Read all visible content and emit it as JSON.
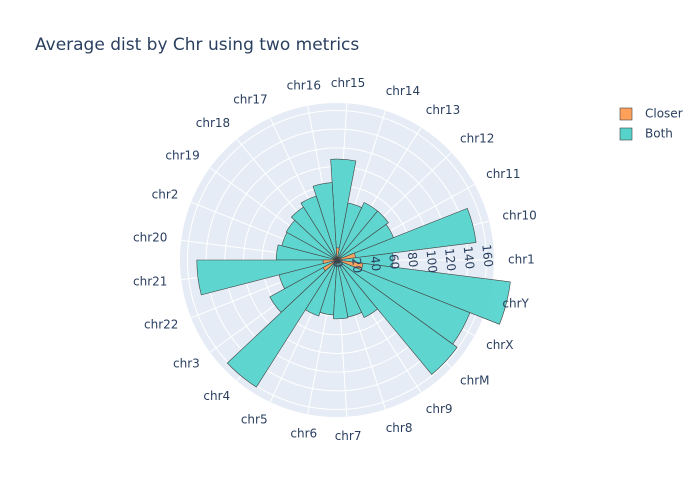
{
  "chart_data": {
    "type": "barpolar",
    "title": "Average dist by Chr using two metrics",
    "categories": [
      "chr1",
      "chr10",
      "chr11",
      "chr12",
      "chr13",
      "chr14",
      "chr15",
      "chr16",
      "chr17",
      "chr18",
      "chr19",
      "chr2",
      "chr20",
      "chr21",
      "chr22",
      "chr3",
      "chr4",
      "chr5",
      "chr6",
      "chr7",
      "chr8",
      "chr9",
      "chrM",
      "chrX",
      "chrY"
    ],
    "series": [
      {
        "name": "Closer",
        "color": "#ffa15a",
        "values": [
          0,
          20,
          5,
          3,
          3,
          2,
          13,
          3,
          2,
          2,
          2,
          4,
          5,
          15,
          4,
          17,
          6,
          3,
          4,
          3,
          2,
          3,
          4,
          3,
          28
        ]
      },
      {
        "name": "Both",
        "color": "#56d4cc",
        "values": [
          60,
          130,
          60,
          65,
          65,
          60,
          95,
          80,
          70,
          65,
          60,
          57,
          60,
          135,
          60,
          65,
          155,
          60,
          55,
          60,
          60,
          65,
          155,
          150,
          159
        ]
      }
    ],
    "radial_ticks": [
      "0",
      "20",
      "40",
      "60",
      "80",
      "100",
      "120",
      "140",
      "160"
    ],
    "radial_range": [
      0,
      168
    ],
    "angular_direction": "counterclockwise",
    "rotation_deg": 0,
    "legend_position": "top-right",
    "grid": true
  }
}
